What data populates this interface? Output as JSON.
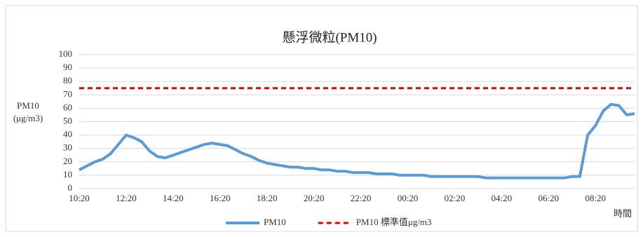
{
  "chart_data": {
    "type": "line",
    "title": "懸浮微粒(PM10)",
    "y_label": [
      "PM10",
      "(μg/m3)"
    ],
    "x_label": "時間",
    "categories": [
      "10:20",
      null,
      null,
      null,
      null,
      null,
      "12:20",
      null,
      null,
      null,
      null,
      null,
      "14:20",
      null,
      null,
      null,
      null,
      null,
      "16:20",
      null,
      null,
      null,
      null,
      null,
      "18:20",
      null,
      null,
      null,
      null,
      null,
      "20:20",
      null,
      null,
      null,
      null,
      null,
      "22:20",
      null,
      null,
      null,
      null,
      null,
      "00:20",
      null,
      null,
      null,
      null,
      null,
      "02:20",
      null,
      null,
      null,
      null,
      null,
      "04:20",
      null,
      null,
      null,
      null,
      null,
      "06:20",
      null,
      null,
      null,
      null,
      null,
      "08:20",
      null,
      null,
      null,
      null,
      null
    ],
    "series": [
      {
        "name": "PM10",
        "color": "#5b9bd5",
        "values": [
          14,
          17,
          20,
          22,
          26,
          33,
          40,
          38,
          35,
          28,
          24,
          23,
          25,
          27,
          29,
          31,
          33,
          34,
          33,
          32,
          29,
          26,
          24,
          21,
          19,
          18,
          17,
          16,
          16,
          15,
          15,
          14,
          14,
          13,
          13,
          12,
          12,
          12,
          11,
          11,
          11,
          10,
          10,
          10,
          10,
          9,
          9,
          9,
          9,
          9,
          9,
          9,
          8,
          8,
          8,
          8,
          8,
          8,
          8,
          8,
          8,
          8,
          8,
          9,
          9,
          40,
          47,
          58,
          63,
          62,
          55,
          56
        ]
      },
      {
        "name": "PM10 標準值μg/m3",
        "color": "#e00000",
        "dashed": true,
        "values": [
          75,
          75,
          75,
          75,
          75,
          75,
          75,
          75,
          75,
          75,
          75,
          75,
          75,
          75,
          75,
          75,
          75,
          75,
          75,
          75,
          75,
          75,
          75,
          75,
          75,
          75,
          75,
          75,
          75,
          75,
          75,
          75,
          75,
          75,
          75,
          75,
          75,
          75,
          75,
          75,
          75,
          75,
          75,
          75,
          75,
          75,
          75,
          75,
          75,
          75,
          75,
          75,
          75,
          75,
          75,
          75,
          75,
          75,
          75,
          75,
          75,
          75,
          75,
          75,
          75,
          75,
          75,
          75,
          75,
          75,
          75,
          75
        ]
      }
    ],
    "ylim": [
      0,
      100
    ],
    "yticks": [
      0,
      10,
      20,
      30,
      40,
      50,
      60,
      70,
      80,
      90,
      100
    ],
    "grid": true,
    "legend": "bottom"
  }
}
